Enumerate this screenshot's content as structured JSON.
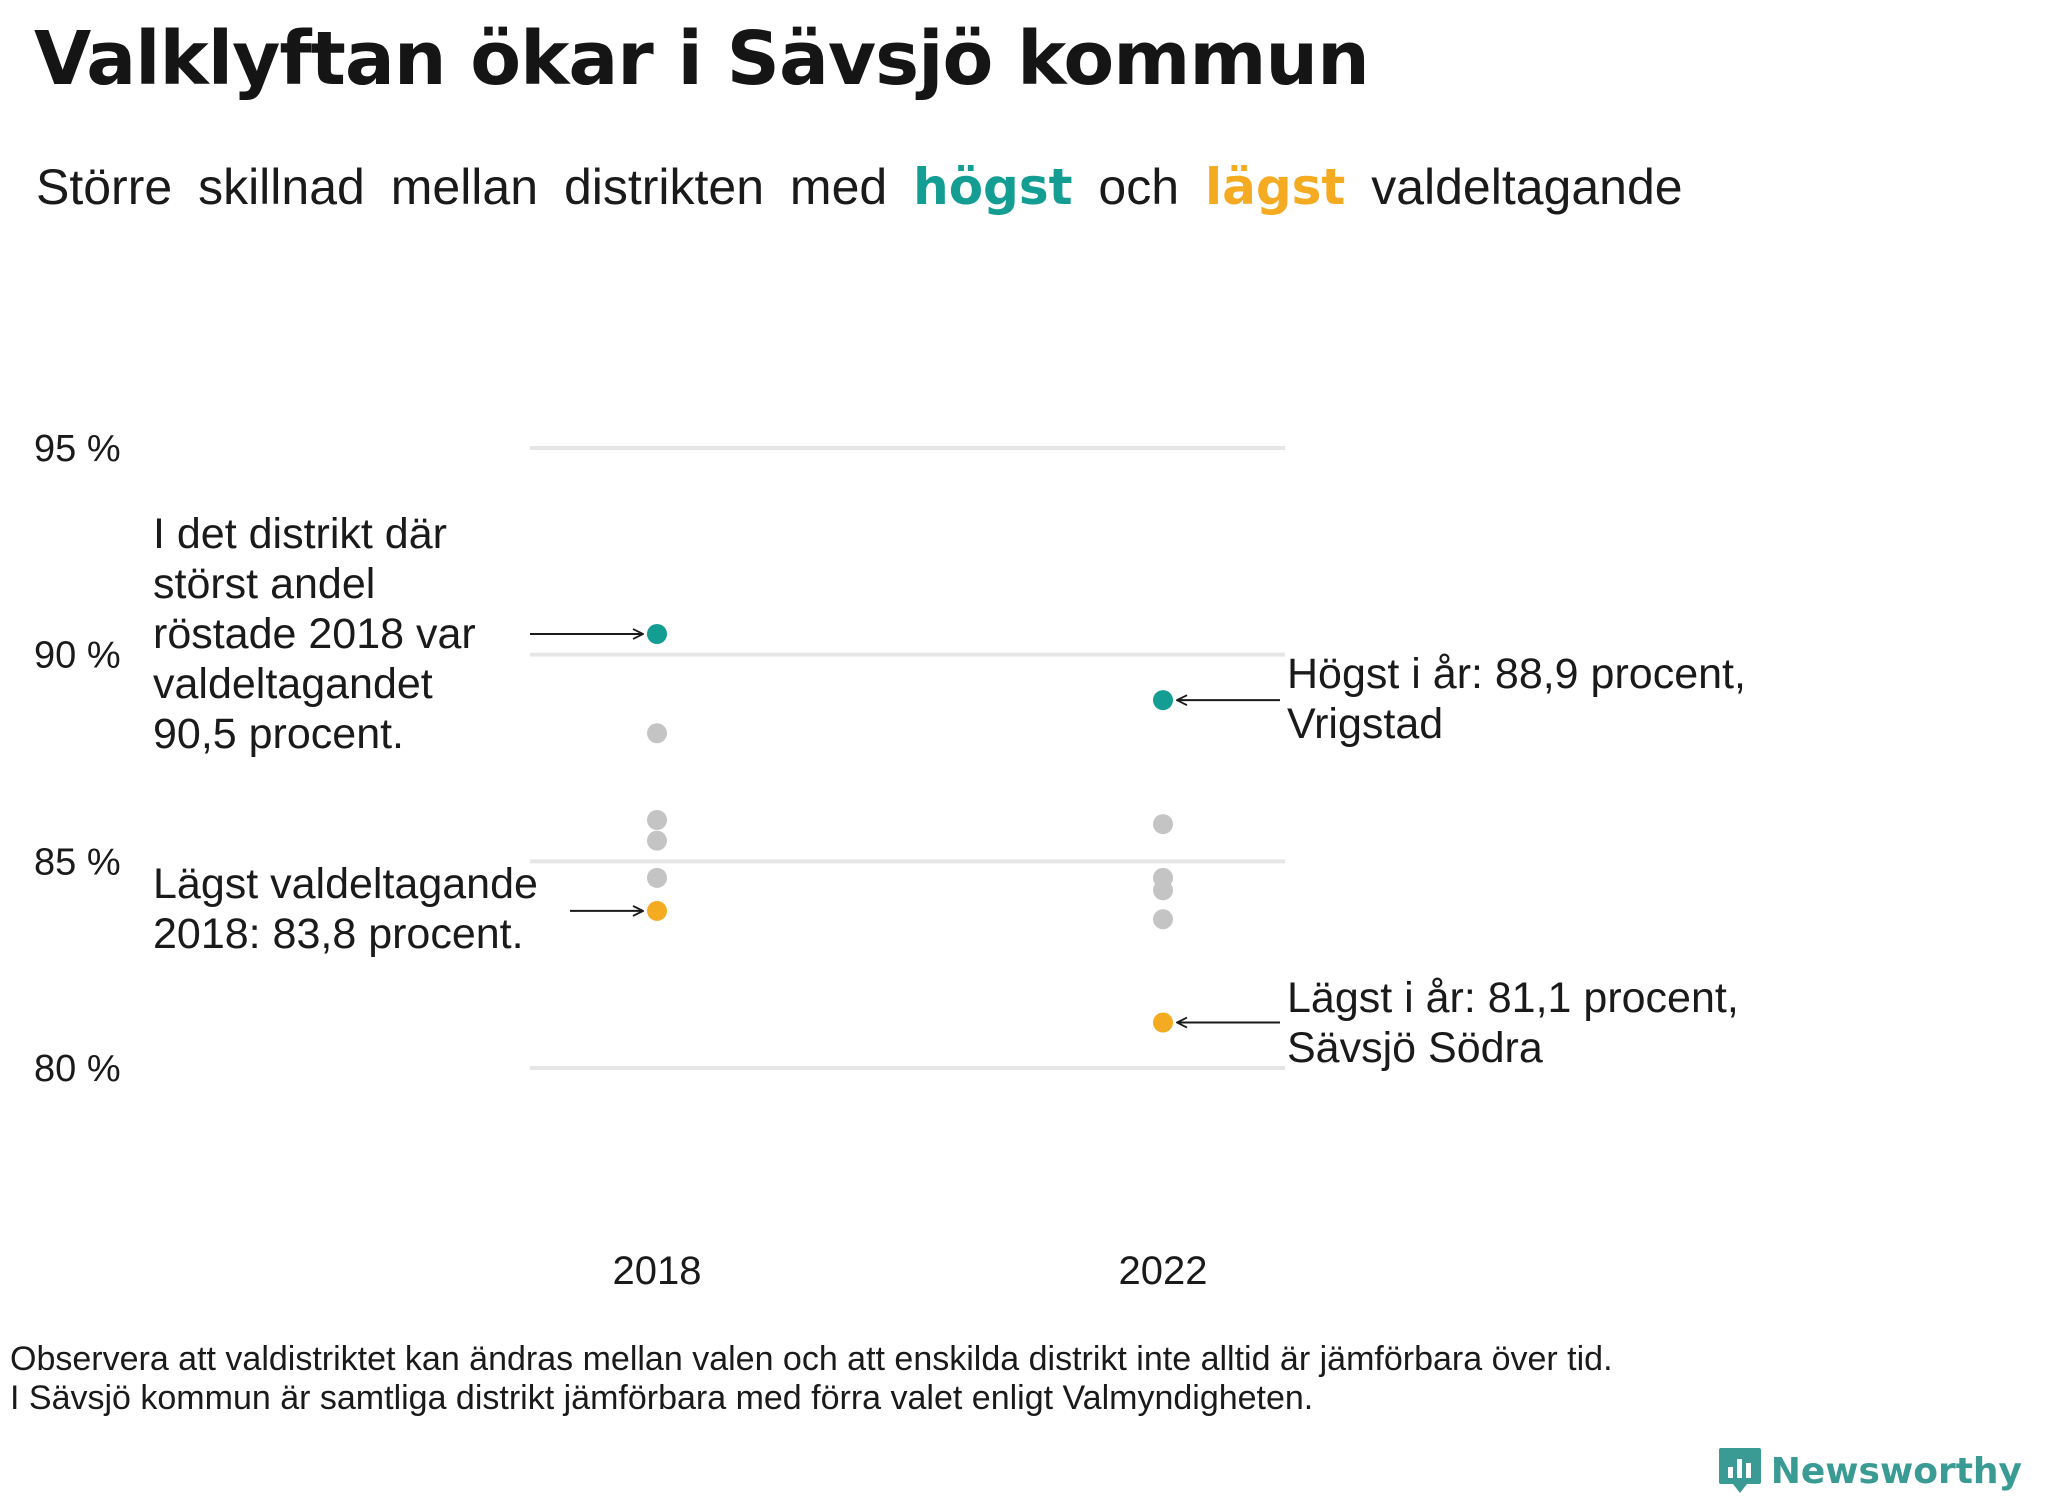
{
  "title": "Valklyftan ökar i Sävsjö kommun",
  "subtitle": {
    "part1": "Större",
    "part2": "skillnad",
    "part3": "mellan",
    "part4": "distrikten",
    "part5": "med",
    "high_word": "högst",
    "part6": "och",
    "low_word": "lägst",
    "part7": "valdeltagande"
  },
  "colors": {
    "high": "#139d93",
    "low": "#f4ab22",
    "other": "#c4c4c4",
    "grid": "#e6e6e6"
  },
  "chart_data": {
    "type": "scatter",
    "categories": [
      "2018",
      "2022"
    ],
    "y_ticks": [
      95,
      90,
      85,
      80
    ],
    "y_tick_labels": [
      "95 %",
      "90 %",
      "85 %",
      "80 %"
    ],
    "ylim": [
      80,
      95
    ],
    "grid": true,
    "series": [
      {
        "year": "2018",
        "high": 90.5,
        "low": 83.8,
        "others": [
          88.1,
          86.0,
          85.5,
          84.6
        ]
      },
      {
        "year": "2022",
        "high": 88.9,
        "low": 81.1,
        "others": [
          85.9,
          84.6,
          84.3,
          83.6
        ]
      }
    ],
    "annotations": {
      "high_2018": [
        "I det distrikt där",
        "störst andel",
        "röstade 2018 var",
        "valdeltagandet",
        "90,5 procent."
      ],
      "low_2018": [
        "Lägst valdeltagande",
        "2018: 83,8 procent."
      ],
      "high_2022": [
        "Högst i år: 88,9 procent,",
        "Vrigstad"
      ],
      "low_2022": [
        "Lägst i år: 81,1 procent,",
        "Sävsjö Södra"
      ]
    }
  },
  "footnote": {
    "line1": "Observera att valdistriktet kan ändras mellan valen och att enskilda distrikt inte alltid är jämförbara över tid.",
    "line2": "I Sävsjö kommun är samtliga distrikt jämförbara med förra valet enligt Valmyndigheten."
  },
  "brand": {
    "name": "Newsworthy",
    "icon": "bar-chart-speech-icon"
  }
}
